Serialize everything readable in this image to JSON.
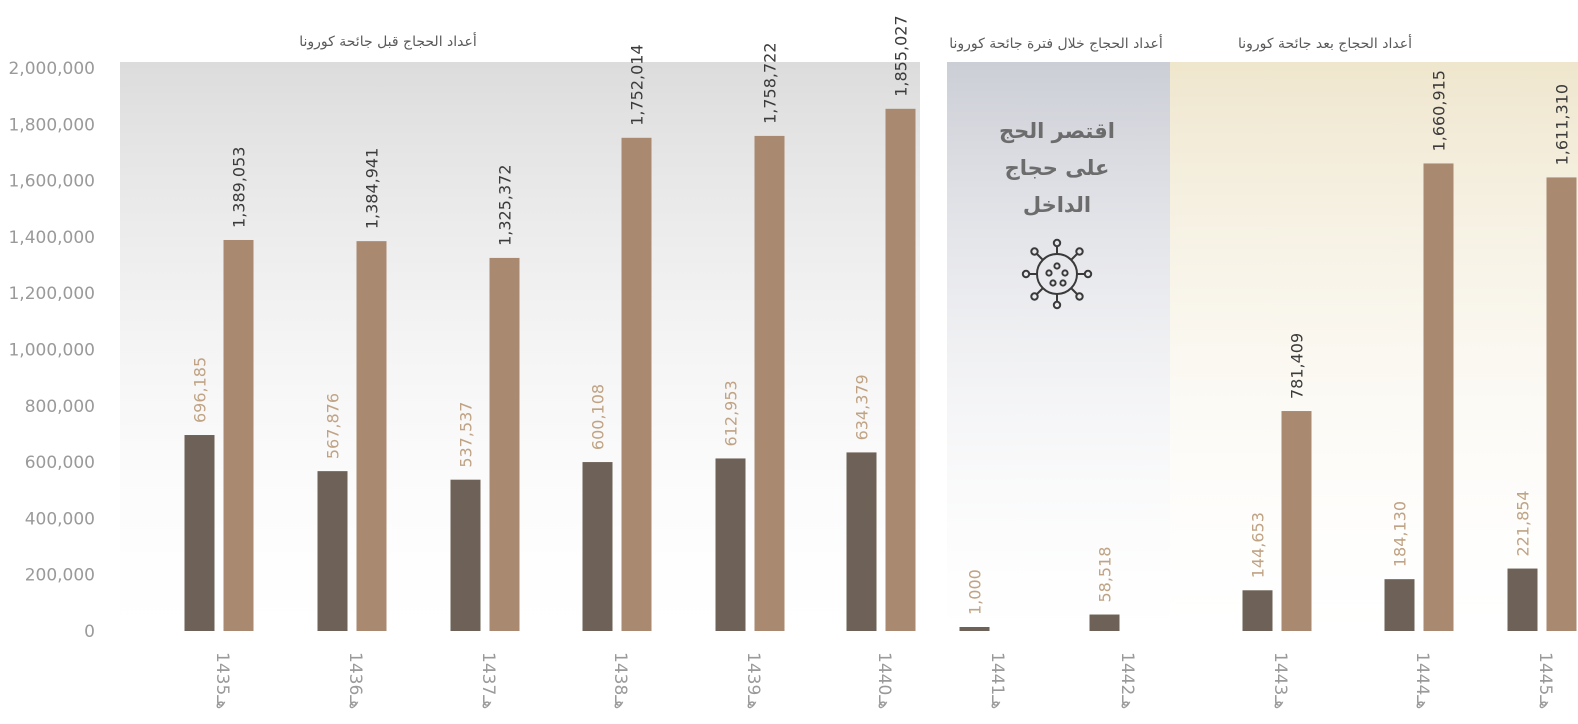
{
  "chart_data": {
    "type": "bar",
    "categories": [
      "1435هـ",
      "1436هـ",
      "1437هـ",
      "1438هـ",
      "1439هـ",
      "1440هـ",
      "1441هـ",
      "1442هـ",
      "1443هـ",
      "1444هـ",
      "1445هـ"
    ],
    "series": [
      {
        "color": "#6e6157",
        "values": [
          696185,
          567876,
          537537,
          600108,
          612953,
          634379,
          1000,
          58518,
          144653,
          184130,
          221854
        ],
        "labels": [
          "696,185",
          "567,876",
          "537,537",
          "600,108",
          "612,953",
          "634,379",
          "1,000",
          "58,518",
          "144,653",
          "184,130",
          "221,854"
        ]
      },
      {
        "color": "#a98a70",
        "values": [
          1389053,
          1384941,
          1325372,
          1752014,
          1758722,
          1855027,
          null,
          null,
          781409,
          1660915,
          1611310
        ],
        "labels": [
          "1,389,053",
          "1,384,941",
          "1,325,372",
          "1,752,014",
          "1,758,722",
          "1,855,027",
          null,
          null,
          "781,409",
          "1,660,915",
          "1,611,310"
        ]
      }
    ],
    "ylim": [
      0,
      2000000
    ],
    "yticks": [
      "0",
      "200,000",
      "400,000",
      "600,000",
      "800,000",
      "1,000,000",
      "1,200,000",
      "1,400,000",
      "1,600,000",
      "1,800,000",
      "2,000,000"
    ],
    "sections": [
      {
        "title": "أعداد الحجاج قبل جائحة كورونا",
        "from": 0,
        "to": 5,
        "color": "#dcdcdc"
      },
      {
        "title": "أعداد الحجاج  خلال فترة جائحة كورونا",
        "from": 6,
        "to": 7,
        "color": "#ccced6"
      },
      {
        "title": "أعداد الحجاج بعد جائحة كورونا",
        "from": 8,
        "to": 10,
        "color": "#efe6cd"
      }
    ],
    "note": [
      "اقتصر الحج",
      "على حجاج",
      "الداخل"
    ],
    "note_icon": "virus-icon",
    "grid": false,
    "legend": "none"
  }
}
